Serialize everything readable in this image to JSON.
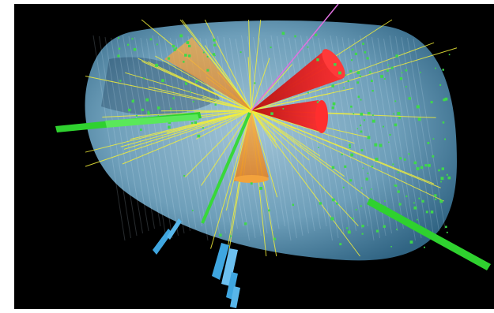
{
  "image": {
    "colors": {
      "background": "#000000",
      "border": "#ffffff",
      "detector_volume": "#7cc6ef",
      "track": "#f2ee3a",
      "jet_cone_red": "#ee1c1c",
      "jet_cone_orange": "#f39a2b",
      "muon_track": "#2fd12f",
      "energy_hit": "#3fd84a",
      "missing_energy_line": "#e070e0",
      "muon_chamber": "#3fa6e0"
    }
  }
}
